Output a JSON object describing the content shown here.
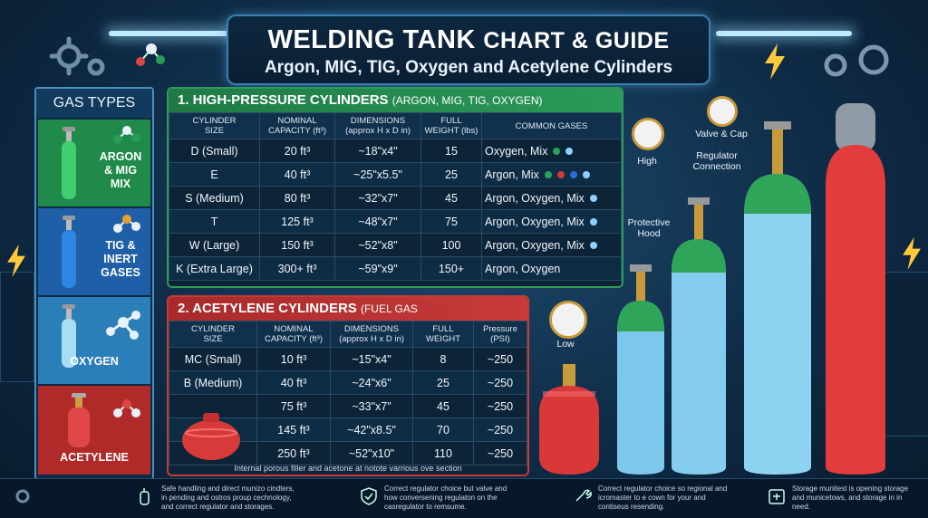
{
  "title": {
    "main_part1": "WELDING TANK",
    "main_part2": "CHART & GUIDE",
    "subtitle": "Argon, MIG, TIG, Oxygen and Acetylene Cylinders"
  },
  "gas_types": {
    "heading": "GAS TYPES",
    "items": [
      {
        "label": "ARGON\n& MIG\nMIX",
        "color": "#1f8a4a",
        "icon": "green-cylinder-icon"
      },
      {
        "label": "TIG &\nINERT\nGASES",
        "color": "#1f5fa8",
        "icon": "blue-cylinder-icon"
      },
      {
        "label": "OXYGEN",
        "color": "#2b7fb8",
        "icon": "light-blue-cylinder-icon"
      },
      {
        "label": "ACETYLENE",
        "color": "#b02a2a",
        "icon": "red-cylinder-icon"
      }
    ]
  },
  "high_pressure": {
    "title_num": "1. HIGH-PRESSURE CYLINDERS",
    "title_paren": "(ARGON, MIG, TIG, OXYGEN)",
    "headers": [
      "CYLINDER\nSIZE",
      "NOMINAL\nCAPACITY (ft³)",
      "DIMENSIONS\n(approx H x D in)",
      "FULL\nWEIGHT (lbs)",
      "COMMON GASES"
    ],
    "rows": [
      [
        "D (Small)",
        "20 ft³",
        "~18\"x4\"",
        "15",
        "Oxygen, Mix"
      ],
      [
        "E",
        "40 ft³",
        "~25\"x5.5\"",
        "25",
        "Argon, Mix"
      ],
      [
        "S (Medium)",
        "80 ft³",
        "~32\"x7\"",
        "45",
        "Argon, Oxygen, Mix"
      ],
      [
        "T",
        "125 ft³",
        "~48\"x7\"",
        "75",
        "Argon, Oxygen, Mix"
      ],
      [
        "W (Large)",
        "150 ft³",
        "~52\"x8\"",
        "100",
        "Argon, Oxygen, Mix"
      ],
      [
        "K (Extra Large)",
        "300+ ft³",
        "~59\"x9\"",
        "150+",
        "Argon, Oxygen"
      ]
    ],
    "row_dots": [
      [
        "#2aa35a",
        "#8fd0ff"
      ],
      [
        "#2aa35a",
        "#d43a3a",
        "#2a6fd0",
        "#8fd0ff"
      ],
      [
        "#8fd0ff"
      ],
      [
        "#8fd0ff"
      ],
      [
        "#8fd0ff"
      ],
      []
    ]
  },
  "acetylene": {
    "title_num": "2. ACETYLENE CYLINDERS",
    "title_paren": "(FUEL GAS",
    "headers": [
      "CYLINDER\nSIZE",
      "NOMINAL\nCAPACITY (ft³)",
      "DIMENSIONS\n(approx H x D in)",
      "FULL\nWEIGHT",
      "Pressure\n(PSI)"
    ],
    "rows": [
      [
        "MC (Small)",
        "10 ft³",
        "~15\"x4\"",
        "8",
        "~250"
      ],
      [
        "B (Medium)",
        "40 ft³",
        "~24\"x6\"",
        "25",
        "~250"
      ],
      [
        "",
        "75 ft³",
        "~33\"x7\"",
        "45",
        "~250"
      ],
      [
        "",
        "145 ft³",
        "~42\"x8.5\"",
        "70",
        "~250"
      ],
      [
        "",
        "250 ft³",
        "~52\"x10\"",
        "110",
        "~250"
      ]
    ],
    "note": "Internal porous filler and acetone at notote varrious ove section"
  },
  "callouts": {
    "high": "High",
    "low": "Low",
    "valve_cap": "Valve & Cap",
    "regulator": "Regulator\nConnection",
    "hood": "Protective\nHood"
  },
  "bottom_tips": [
    {
      "icon": "extinguisher-icon",
      "text": "Safe handling and direct munizo cindters, in pending and ostros proup cechnology, and correct regulator and storages."
    },
    {
      "icon": "shield-check-icon",
      "text": "Correct regulator choice but valve and how conversening regulaton on the casregulator to remsume."
    },
    {
      "icon": "hand-wrench-icon",
      "text": "Correct regulator choice so regional and icromaster to e cown for your and contiseus resending."
    },
    {
      "icon": "storage-icon",
      "text": "Storage munitest is opening storage and municetows, and storage in in need."
    }
  ]
}
